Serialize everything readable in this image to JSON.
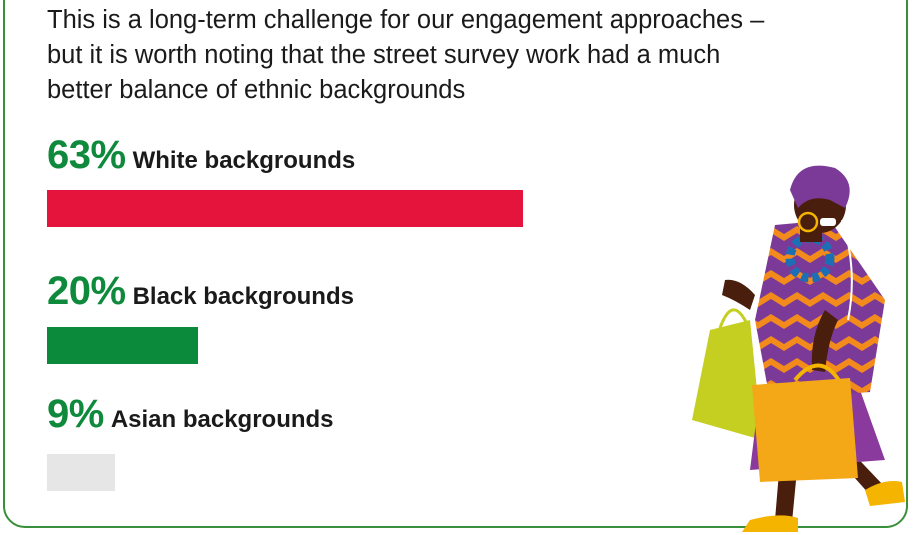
{
  "intro_text": "This is a long-term challenge for our engagement approaches – but it is worth noting that the street survey work had a much better balance of ethnic backgrounds",
  "chart_data": {
    "type": "bar",
    "orientation": "horizontal",
    "categories": [
      "White backgrounds",
      "Black backgrounds",
      "Asian backgrounds"
    ],
    "values": [
      63,
      20,
      9
    ],
    "value_labels": [
      "63%",
      "20%",
      "9%"
    ],
    "colors": [
      "#e4143c",
      "#0b8a3c",
      "#e6e6e6"
    ],
    "unit": "%",
    "xlim": [
      0,
      100
    ],
    "grid": false
  },
  "colors": {
    "percent_text": "#0f8a3c",
    "border": "#3a8f3a"
  },
  "illustration": {
    "icon": "shopper-with-bags-illustration"
  }
}
